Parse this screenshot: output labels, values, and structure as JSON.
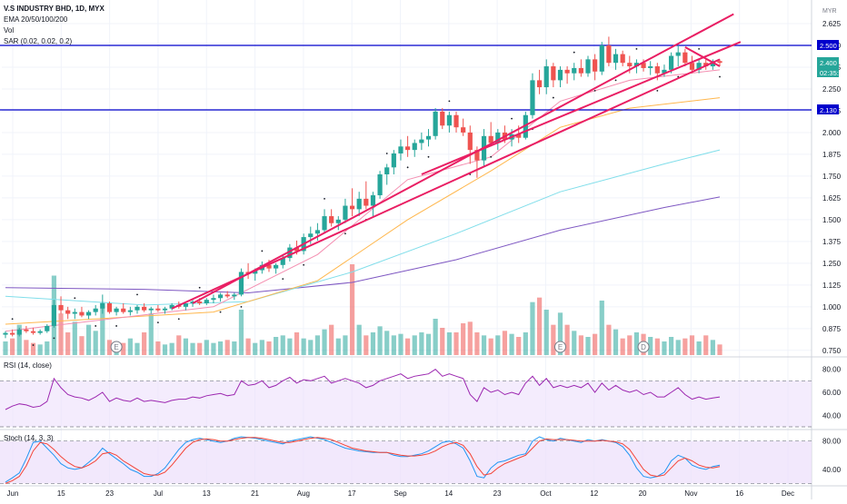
{
  "header": {
    "symbol_line": "V.S INDUSTRY BHD, 1D, MYX",
    "ema_label": "EMA 20/50/100/200",
    "vol_label": "Vol",
    "sar_label": "SAR (0.02, 0.02, 0.2)",
    "currency": "MYR"
  },
  "panes": {
    "rsi_label": "RSI (14, close)",
    "stoch_label": "Stoch (14, 3, 3)"
  },
  "price_tags": {
    "resistance": "2.500",
    "current": "2.400",
    "countdown": "02:35:01",
    "support": "2.130"
  },
  "colors": {
    "up": "#26a69a",
    "down": "#ef5350",
    "hline": "#0000cc",
    "trendline": "#e91e63",
    "ema20": "#f48fb1",
    "ema50": "#ffb74d",
    "ema100": "#80deea",
    "ema200": "#7e57c2",
    "sar": "#131722",
    "rsi": "#9c27b0",
    "pane_fill": "#ede0fb",
    "stoch_k": "#2196f3",
    "stoch_d": "#f44336"
  },
  "chart_data": [
    {
      "type": "candlestick",
      "title": "V.S INDUSTRY BHD, 1D, MYX",
      "x": [
        "Jun",
        "15",
        "23",
        "Jul",
        "13",
        "21",
        "Aug",
        "17",
        "Sep",
        "14",
        "23",
        "Oct",
        "12",
        "20",
        "Nov",
        "16",
        "Dec"
      ],
      "ylim": [
        0.7,
        2.7
      ],
      "y_ticks": [
        "0.750",
        "0.875",
        "1.000",
        "1.125",
        "1.250",
        "1.375",
        "1.500",
        "1.625",
        "1.750",
        "1.875",
        "2.000",
        "2.125",
        "2.250",
        "2.375",
        "2.500",
        "2.625"
      ],
      "ohlc_values": [
        [
          0.84,
          0.86,
          0.82,
          0.85
        ],
        [
          0.85,
          0.87,
          0.83,
          0.84
        ],
        [
          0.84,
          0.88,
          0.83,
          0.87
        ],
        [
          0.87,
          0.89,
          0.85,
          0.86
        ],
        [
          0.86,
          0.88,
          0.84,
          0.85
        ],
        [
          0.85,
          0.87,
          0.84,
          0.86
        ],
        [
          0.86,
          0.9,
          0.85,
          0.89
        ],
        [
          0.89,
          1.04,
          0.88,
          1.01
        ],
        [
          1.01,
          1.06,
          0.96,
          0.98
        ],
        [
          0.98,
          1.0,
          0.93,
          0.96
        ],
        [
          0.96,
          0.99,
          0.93,
          0.97
        ],
        [
          0.97,
          1.0,
          0.94,
          0.95
        ],
        [
          0.95,
          0.98,
          0.93,
          0.97
        ],
        [
          0.97,
          1.01,
          0.95,
          0.99
        ],
        [
          0.99,
          1.07,
          0.96,
          1.02
        ],
        [
          1.02,
          1.03,
          0.96,
          0.97
        ],
        [
          0.97,
          1.0,
          0.95,
          0.99
        ],
        [
          0.99,
          1.02,
          0.96,
          0.97
        ],
        [
          0.97,
          1.0,
          0.95,
          0.98
        ],
        [
          0.98,
          1.01,
          0.96,
          1.0
        ],
        [
          1.0,
          1.02,
          0.97,
          0.98
        ],
        [
          0.98,
          1.0,
          0.96,
          0.99
        ],
        [
          0.99,
          1.01,
          0.97,
          0.98
        ],
        [
          0.98,
          1.0,
          0.96,
          0.99
        ],
        [
          0.99,
          1.02,
          0.98,
          1.01
        ],
        [
          1.01,
          1.03,
          0.99,
          1.0
        ],
        [
          1.0,
          1.02,
          0.98,
          1.02
        ],
        [
          1.02,
          1.04,
          1.0,
          1.03
        ],
        [
          1.03,
          1.05,
          1.01,
          1.02
        ],
        [
          1.02,
          1.05,
          1.01,
          1.04
        ],
        [
          1.04,
          1.07,
          1.02,
          1.05
        ],
        [
          1.05,
          1.08,
          1.03,
          1.07
        ],
        [
          1.07,
          1.09,
          1.05,
          1.06
        ],
        [
          1.06,
          1.08,
          1.04,
          1.07
        ],
        [
          1.07,
          1.22,
          1.06,
          1.2
        ],
        [
          1.2,
          1.25,
          1.16,
          1.19
        ],
        [
          1.19,
          1.22,
          1.15,
          1.21
        ],
        [
          1.21,
          1.26,
          1.19,
          1.24
        ],
        [
          1.24,
          1.27,
          1.2,
          1.22
        ],
        [
          1.22,
          1.25,
          1.19,
          1.24
        ],
        [
          1.24,
          1.3,
          1.22,
          1.28
        ],
        [
          1.28,
          1.36,
          1.26,
          1.34
        ],
        [
          1.34,
          1.38,
          1.3,
          1.32
        ],
        [
          1.32,
          1.42,
          1.3,
          1.4
        ],
        [
          1.4,
          1.46,
          1.36,
          1.42
        ],
        [
          1.42,
          1.48,
          1.38,
          1.44
        ],
        [
          1.44,
          1.56,
          1.42,
          1.52
        ],
        [
          1.52,
          1.56,
          1.46,
          1.48
        ],
        [
          1.48,
          1.52,
          1.44,
          1.5
        ],
        [
          1.5,
          1.62,
          1.48,
          1.58
        ],
        [
          1.58,
          1.68,
          1.52,
          1.56
        ],
        [
          1.56,
          1.66,
          1.52,
          1.62
        ],
        [
          1.62,
          1.72,
          1.56,
          1.58
        ],
        [
          1.58,
          1.66,
          1.52,
          1.64
        ],
        [
          1.64,
          1.78,
          1.62,
          1.76
        ],
        [
          1.76,
          1.82,
          1.7,
          1.8
        ],
        [
          1.8,
          1.9,
          1.76,
          1.88
        ],
        [
          1.88,
          1.96,
          1.84,
          1.92
        ],
        [
          1.92,
          1.98,
          1.86,
          1.9
        ],
        [
          1.9,
          1.96,
          1.86,
          1.94
        ],
        [
          1.94,
          2.0,
          1.9,
          1.96
        ],
        [
          1.96,
          2.02,
          1.92,
          1.98
        ],
        [
          1.98,
          2.14,
          1.96,
          2.12
        ],
        [
          2.12,
          2.14,
          2.02,
          2.04
        ],
        [
          2.04,
          2.12,
          2.0,
          2.1
        ],
        [
          2.1,
          2.12,
          2.0,
          2.03
        ],
        [
          2.03,
          2.08,
          1.98,
          2.0
        ],
        [
          2.0,
          2.04,
          1.82,
          1.9
        ],
        [
          1.9,
          1.92,
          1.74,
          1.84
        ],
        [
          1.84,
          2.02,
          1.8,
          1.98
        ],
        [
          1.98,
          2.06,
          1.92,
          1.94
        ],
        [
          1.94,
          2.02,
          1.9,
          2.0
        ],
        [
          2.0,
          2.04,
          1.94,
          1.96
        ],
        [
          1.96,
          2.02,
          1.92,
          1.99
        ],
        [
          1.99,
          2.04,
          1.94,
          1.97
        ],
        [
          1.97,
          2.12,
          1.96,
          2.1
        ],
        [
          2.1,
          2.34,
          2.08,
          2.3
        ],
        [
          2.3,
          2.36,
          2.22,
          2.26
        ],
        [
          2.26,
          2.42,
          2.22,
          2.38
        ],
        [
          2.38,
          2.4,
          2.26,
          2.3
        ],
        [
          2.3,
          2.38,
          2.26,
          2.36
        ],
        [
          2.36,
          2.38,
          2.28,
          2.34
        ],
        [
          2.34,
          2.4,
          2.3,
          2.37
        ],
        [
          2.37,
          2.42,
          2.32,
          2.34
        ],
        [
          2.34,
          2.44,
          2.32,
          2.42
        ],
        [
          2.42,
          2.45,
          2.3,
          2.35
        ],
        [
          2.35,
          2.52,
          2.33,
          2.5
        ],
        [
          2.5,
          2.55,
          2.38,
          2.4
        ],
        [
          2.4,
          2.48,
          2.36,
          2.45
        ],
        [
          2.45,
          2.47,
          2.38,
          2.4
        ],
        [
          2.4,
          2.44,
          2.34,
          2.38
        ],
        [
          2.38,
          2.42,
          2.34,
          2.4
        ],
        [
          2.4,
          2.42,
          2.35,
          2.37
        ],
        [
          2.37,
          2.41,
          2.33,
          2.38
        ],
        [
          2.38,
          2.4,
          2.3,
          2.34
        ],
        [
          2.34,
          2.39,
          2.32,
          2.36
        ],
        [
          2.36,
          2.46,
          2.34,
          2.44
        ],
        [
          2.44,
          2.5,
          2.38,
          2.46
        ],
        [
          2.46,
          2.48,
          2.38,
          2.4
        ],
        [
          2.4,
          2.44,
          2.34,
          2.36
        ],
        [
          2.36,
          2.42,
          2.34,
          2.4
        ],
        [
          2.4,
          2.42,
          2.36,
          2.38
        ],
        [
          2.38,
          2.42,
          2.36,
          2.41
        ],
        [
          2.41,
          2.42,
          2.38,
          2.4
        ]
      ],
      "volume_values": [
        18,
        22,
        40,
        20,
        16,
        14,
        18,
        105,
        55,
        30,
        44,
        25,
        40,
        32,
        70,
        20,
        18,
        16,
        22,
        16,
        30,
        55,
        18,
        14,
        16,
        26,
        22,
        16,
        16,
        20,
        16,
        18,
        20,
        18,
        60,
        22,
        16,
        20,
        18,
        24,
        26,
        22,
        30,
        22,
        20,
        26,
        34,
        40,
        22,
        26,
        120,
        40,
        26,
        30,
        38,
        32,
        26,
        28,
        22,
        26,
        30,
        28,
        48,
        36,
        30,
        30,
        42,
        44,
        30,
        26,
        22,
        26,
        32,
        28,
        24,
        30,
        70,
        76,
        60,
        40,
        56,
        40,
        32,
        26,
        24,
        28,
        72,
        40,
        34,
        22,
        26,
        30,
        28,
        24,
        22,
        18,
        24,
        20,
        22,
        26,
        18,
        26,
        20,
        14
      ],
      "ema20": [
        [
          0,
          0.86
        ],
        [
          30,
          1.0
        ],
        [
          45,
          1.3
        ],
        [
          58,
          1.73
        ],
        [
          70,
          1.86
        ],
        [
          80,
          2.18
        ],
        [
          90,
          2.3
        ],
        [
          103,
          2.36
        ]
      ],
      "ema50": [
        [
          0,
          0.9
        ],
        [
          30,
          0.97
        ],
        [
          45,
          1.15
        ],
        [
          58,
          1.5
        ],
        [
          70,
          1.78
        ],
        [
          80,
          2.03
        ],
        [
          90,
          2.14
        ],
        [
          103,
          2.2
        ]
      ],
      "ema100": [
        [
          0,
          1.06
        ],
        [
          20,
          1.01
        ],
        [
          35,
          1.03
        ],
        [
          50,
          1.2
        ],
        [
          65,
          1.42
        ],
        [
          80,
          1.66
        ],
        [
          95,
          1.82
        ],
        [
          103,
          1.9
        ]
      ],
      "ema200": [
        [
          0,
          1.11
        ],
        [
          20,
          1.1
        ],
        [
          35,
          1.08
        ],
        [
          50,
          1.14
        ],
        [
          65,
          1.27
        ],
        [
          80,
          1.44
        ],
        [
          95,
          1.57
        ],
        [
          103,
          1.63
        ]
      ],
      "horizontal_lines": [
        2.5,
        2.13
      ],
      "trendlines": [
        [
          [
            24,
            0.99
          ],
          [
            103,
            2.42
          ]
        ],
        [
          [
            27,
            1.02
          ],
          [
            105,
            2.68
          ]
        ],
        [
          [
            98,
            2.49
          ],
          [
            103,
            2.38
          ]
        ],
        [
          [
            60,
            1.76
          ],
          [
            106,
            2.52
          ]
        ]
      ],
      "event_markers": [
        {
          "index": 16,
          "label": "E"
        },
        {
          "index": 80,
          "label": "E"
        },
        {
          "index": 92,
          "label": "D"
        }
      ]
    },
    {
      "type": "line",
      "title": "RSI (14, close)",
      "ylim": [
        30,
        90
      ],
      "y_ticks": [
        "80.00",
        "60.00",
        "40.00"
      ],
      "bands": [
        70,
        30
      ],
      "values": [
        45,
        48,
        50,
        49,
        47,
        48,
        52,
        72,
        64,
        58,
        56,
        55,
        53,
        56,
        60,
        52,
        55,
        53,
        52,
        55,
        52,
        53,
        52,
        51,
        53,
        54,
        54,
        56,
        55,
        57,
        58,
        59,
        57,
        58,
        70,
        66,
        67,
        70,
        64,
        66,
        70,
        73,
        68,
        71,
        70,
        72,
        74,
        68,
        70,
        72,
        70,
        68,
        64,
        66,
        70,
        72,
        74,
        76,
        72,
        74,
        75,
        76,
        80,
        74,
        76,
        74,
        72,
        58,
        52,
        64,
        60,
        62,
        58,
        60,
        58,
        68,
        74,
        66,
        72,
        64,
        66,
        64,
        66,
        64,
        68,
        60,
        68,
        62,
        66,
        62,
        60,
        62,
        58,
        60,
        56,
        56,
        60,
        64,
        58,
        54,
        56,
        54,
        55,
        56
      ]
    },
    {
      "type": "line",
      "title": "Stoch (14, 3, 3)",
      "ylim": [
        18,
        95
      ],
      "y_ticks": [
        "80.00",
        "40.00"
      ],
      "bands": [
        80,
        20
      ],
      "series": [
        {
          "values": [
            22,
            28,
            35,
            55,
            78,
            80,
            70,
            60,
            48,
            42,
            40,
            42,
            50,
            58,
            70,
            62,
            55,
            48,
            40,
            36,
            30,
            30,
            34,
            42,
            55,
            68,
            78,
            82,
            84,
            82,
            80,
            78,
            80,
            84,
            86,
            85,
            84,
            82,
            80,
            78,
            76,
            80,
            82,
            84,
            86,
            84,
            82,
            78,
            74,
            70,
            68,
            66,
            65,
            64,
            64,
            64,
            60,
            58,
            58,
            60,
            62,
            66,
            72,
            78,
            80,
            76,
            70,
            52,
            30,
            28,
            42,
            50,
            52,
            56,
            60,
            62,
            80,
            86,
            82,
            80,
            84,
            82,
            80,
            78,
            82,
            80,
            82,
            80,
            78,
            72,
            60,
            42,
            30,
            28,
            30,
            36,
            52,
            60,
            56,
            46,
            42,
            40,
            44,
            46
          ]
        },
        {
          "series_role": "d",
          "values": [
            20,
            24,
            30,
            45,
            66,
            78,
            76,
            68,
            58,
            50,
            44,
            42,
            46,
            52,
            62,
            64,
            60,
            52,
            46,
            40,
            34,
            32,
            32,
            36,
            46,
            58,
            70,
            78,
            82,
            83,
            82,
            80,
            80,
            82,
            84,
            85,
            85,
            84,
            82,
            80,
            78,
            78,
            80,
            82,
            84,
            85,
            84,
            82,
            78,
            74,
            70,
            68,
            66,
            65,
            64,
            64,
            62,
            60,
            59,
            59,
            60,
            62,
            66,
            72,
            76,
            78,
            74,
            62,
            44,
            32,
            34,
            42,
            48,
            52,
            56,
            60,
            70,
            80,
            83,
            82,
            82,
            82,
            81,
            80,
            80,
            80,
            81,
            80,
            79,
            76,
            68,
            54,
            40,
            32,
            30,
            32,
            42,
            52,
            56,
            52,
            46,
            43,
            42,
            44
          ]
        }
      ]
    }
  ]
}
